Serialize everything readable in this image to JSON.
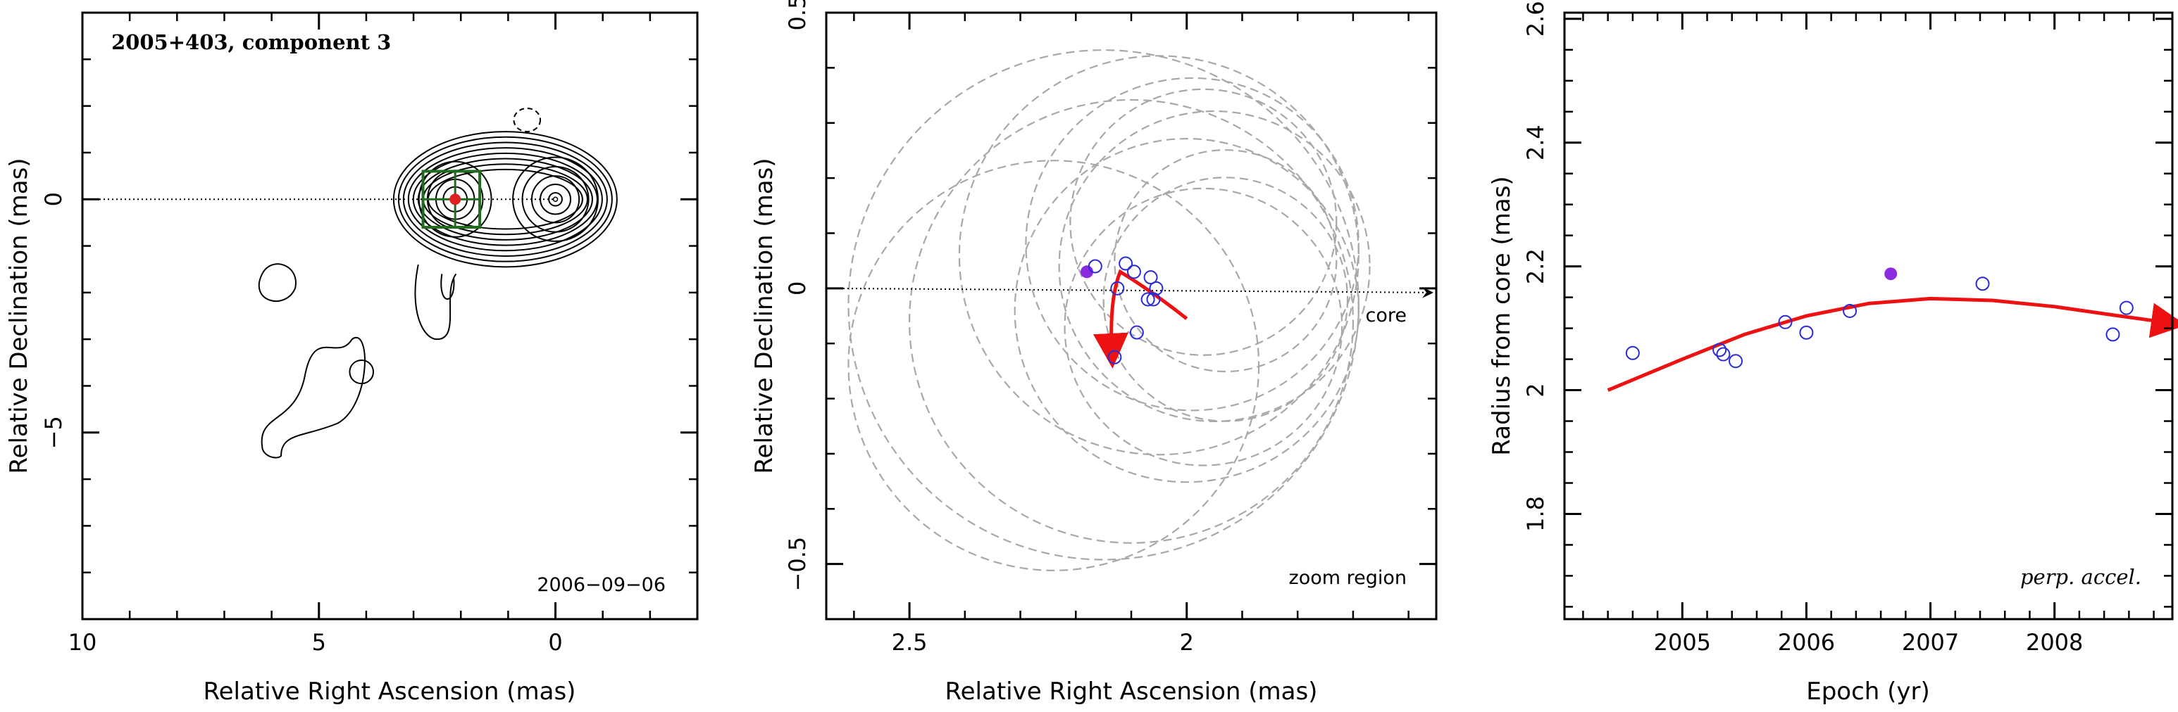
{
  "chart_data": [
    {
      "type": "contour-map",
      "title": "2005+403, component 3",
      "date_label": "2006−09−06",
      "xlabel": "Relative Right Ascension (mas)",
      "ylabel": "Relative Declination (mas)",
      "xlim": [
        10,
        -3
      ],
      "ylim": [
        -9,
        4
      ],
      "xticks": [
        {
          "v": 10,
          "label": "10"
        },
        {
          "v": 5,
          "label": "5"
        },
        {
          "v": 0,
          "label": "0"
        }
      ],
      "yticks": [
        {
          "v": 0,
          "label": "0"
        },
        {
          "v": -5,
          "label": "−5"
        }
      ],
      "xminor": [
        9,
        8,
        7,
        6,
        4,
        3,
        2,
        1,
        -1,
        -2
      ],
      "yminor": [
        3,
        2,
        1,
        -1,
        -2,
        -3,
        -4,
        -6,
        -7,
        -8
      ],
      "zoom_box": {
        "x": [
          1.6,
          2.8
        ],
        "y": [
          -0.6,
          0.6
        ]
      },
      "component_position": {
        "x": 2.12,
        "y": 0.0
      },
      "core_position": {
        "x": 0.0,
        "y": 0.0
      },
      "colors": {
        "contour": "#000000",
        "box": "#1f6b1f",
        "marker": "#e02020"
      }
    },
    {
      "type": "scatter",
      "title": "",
      "xlabel": "Relative Right Ascension (mas)",
      "ylabel": "Relative Declination (mas)",
      "xlim": [
        2.65,
        1.55
      ],
      "ylim": [
        -0.6,
        0.5
      ],
      "xticks": [
        {
          "v": 2.5,
          "label": "2.5"
        },
        {
          "v": 2.0,
          "label": "2"
        }
      ],
      "yticks": [
        {
          "v": 0.5,
          "label": "0.5"
        },
        {
          "v": 0,
          "label": "0"
        },
        {
          "v": -0.5,
          "label": "−0.5"
        }
      ],
      "xminor": [
        2.6,
        2.4,
        2.3,
        2.2,
        2.1,
        1.9,
        1.8,
        1.7,
        1.6
      ],
      "yminor": [
        0.4,
        0.3,
        0.2,
        0.1,
        -0.1,
        -0.2,
        -0.3,
        -0.4
      ],
      "labels": {
        "core": "core",
        "zoom": "zoom region"
      },
      "points": [
        {
          "x": 2.18,
          "y": 0.03,
          "filled": true
        },
        {
          "x": 2.165,
          "y": 0.04,
          "filled": false
        },
        {
          "x": 2.125,
          "y": 0.0,
          "filled": false
        },
        {
          "x": 2.11,
          "y": 0.045,
          "filled": false
        },
        {
          "x": 2.095,
          "y": 0.03,
          "filled": false
        },
        {
          "x": 2.065,
          "y": 0.02,
          "filled": false
        },
        {
          "x": 2.055,
          "y": 0.0,
          "filled": false
        },
        {
          "x": 2.07,
          "y": -0.02,
          "filled": false
        },
        {
          "x": 2.06,
          "y": -0.02,
          "filled": false
        },
        {
          "x": 2.09,
          "y": -0.08,
          "filled": false
        },
        {
          "x": 2.13,
          "y": -0.125,
          "filled": false
        }
      ],
      "circles": [
        {
          "x": 2.05,
          "y": 0.06,
          "r": 0.36
        },
        {
          "x": 2.1,
          "y": -0.06,
          "r": 0.4
        },
        {
          "x": 2.15,
          "y": -0.03,
          "r": 0.46
        },
        {
          "x": 1.97,
          "y": 0.12,
          "r": 0.24
        },
        {
          "x": 1.95,
          "y": 0.04,
          "r": 0.28
        },
        {
          "x": 1.93,
          "y": -0.02,
          "r": 0.22
        },
        {
          "x": 1.97,
          "y": -0.07,
          "r": 0.25
        },
        {
          "x": 1.99,
          "y": 0.08,
          "r": 0.3
        },
        {
          "x": 2.0,
          "y": -0.04,
          "r": 0.31
        },
        {
          "x": 1.93,
          "y": 0.05,
          "r": 0.2
        },
        {
          "x": 2.24,
          "y": -0.14,
          "r": 0.37
        }
      ],
      "trajectory": [
        [
          2.0,
          -0.055
        ],
        [
          2.06,
          -0.02
        ],
        [
          2.12,
          0.03
        ],
        [
          2.14,
          -0.02
        ],
        [
          2.135,
          -0.12
        ]
      ],
      "colors": {
        "point": "#2a2ad6",
        "filled": "#8a2be2",
        "arrow": "#ee1111",
        "circle": "#a8a8a8"
      }
    },
    {
      "type": "scatter",
      "title": "",
      "xlabel": "Epoch (yr)",
      "ylabel": "Radius from core (mas)",
      "annotation": "perp. accel.",
      "xlim": [
        2004.05,
        2008.95
      ],
      "ylim": [
        1.63,
        2.61
      ],
      "xticks": [
        {
          "v": 2005,
          "label": "2005"
        },
        {
          "v": 2006,
          "label": "2006"
        },
        {
          "v": 2007,
          "label": "2007"
        },
        {
          "v": 2008,
          "label": "2008"
        }
      ],
      "yticks": [
        {
          "v": 1.8,
          "label": "1.8"
        },
        {
          "v": 2.0,
          "label": "2"
        },
        {
          "v": 2.2,
          "label": "2.2"
        },
        {
          "v": 2.4,
          "label": "2.4"
        },
        {
          "v": 2.6,
          "label": "2.6"
        }
      ],
      "xminor": [
        2004.2,
        2004.4,
        2004.6,
        2004.8,
        2005.2,
        2005.4,
        2005.6,
        2005.8,
        2006.2,
        2006.4,
        2006.6,
        2006.8,
        2007.2,
        2007.4,
        2007.6,
        2007.8,
        2008.2,
        2008.4,
        2008.6,
        2008.8
      ],
      "yminor": [
        1.65,
        1.7,
        1.75,
        1.85,
        1.9,
        1.95,
        2.05,
        2.1,
        2.15,
        2.25,
        2.3,
        2.35,
        2.45,
        2.5,
        2.55
      ],
      "points": [
        {
          "x": 2004.6,
          "y": 2.06,
          "filled": false
        },
        {
          "x": 2005.3,
          "y": 2.065,
          "filled": false
        },
        {
          "x": 2005.33,
          "y": 2.058,
          "filled": false
        },
        {
          "x": 2005.43,
          "y": 2.047,
          "filled": false
        },
        {
          "x": 2005.83,
          "y": 2.11,
          "filled": false
        },
        {
          "x": 2006.0,
          "y": 2.093,
          "filled": false
        },
        {
          "x": 2006.35,
          "y": 2.128,
          "filled": false
        },
        {
          "x": 2006.68,
          "y": 2.188,
          "filled": true
        },
        {
          "x": 2007.42,
          "y": 2.172,
          "filled": false
        },
        {
          "x": 2008.47,
          "y": 2.09,
          "filled": false
        },
        {
          "x": 2008.58,
          "y": 2.133,
          "filled": false
        }
      ],
      "fit_curve": [
        [
          2004.4,
          2.0
        ],
        [
          2005,
          2.05
        ],
        [
          2005.5,
          2.09
        ],
        [
          2006,
          2.12
        ],
        [
          2006.5,
          2.14
        ],
        [
          2007,
          2.148
        ],
        [
          2007.5,
          2.145
        ],
        [
          2008,
          2.135
        ],
        [
          2008.45,
          2.122
        ],
        [
          2008.95,
          2.108
        ]
      ],
      "colors": {
        "point": "#2a2ad6",
        "filled": "#8a2be2",
        "curve": "#ee1111"
      }
    }
  ]
}
